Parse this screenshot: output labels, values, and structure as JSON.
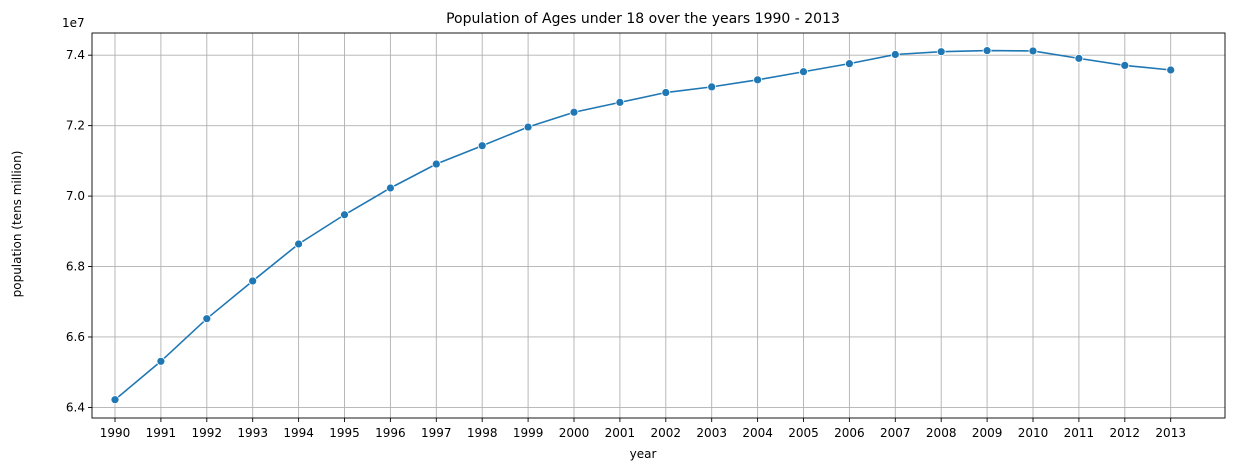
{
  "chart_data": {
    "type": "line",
    "title": "Population of Ages under 18 over the years 1990 - 2013",
    "xlabel": "year",
    "ylabel": "population (tens million)",
    "offset_text": "1e7",
    "x": [
      "1990",
      "1991",
      "1992",
      "1993",
      "1994",
      "1995",
      "1996",
      "1997",
      "1998",
      "1999",
      "2000",
      "2001",
      "2002",
      "2003",
      "2004",
      "2005",
      "2006",
      "2007",
      "2008",
      "2009",
      "2010",
      "2011",
      "2012",
      "2013"
    ],
    "series": [
      {
        "values": [
          64220000,
          65310000,
          66520000,
          67590000,
          68640000,
          69470000,
          70230000,
          70910000,
          71430000,
          71960000,
          72380000,
          72660000,
          72940000,
          73100000,
          73300000,
          73530000,
          73760000,
          74020000,
          74100000,
          74130000,
          74120000,
          73910000,
          73710000,
          73580000
        ],
        "color": "#1f77b4"
      }
    ],
    "y_ticks": [
      64000000,
      66000000,
      68000000,
      70000000,
      72000000,
      74000000
    ],
    "y_tick_labels": [
      "6.4",
      "6.6",
      "6.8",
      "7.0",
      "7.2",
      "7.4"
    ],
    "ylim": [
      63700000,
      74630000
    ],
    "grid": true
  }
}
